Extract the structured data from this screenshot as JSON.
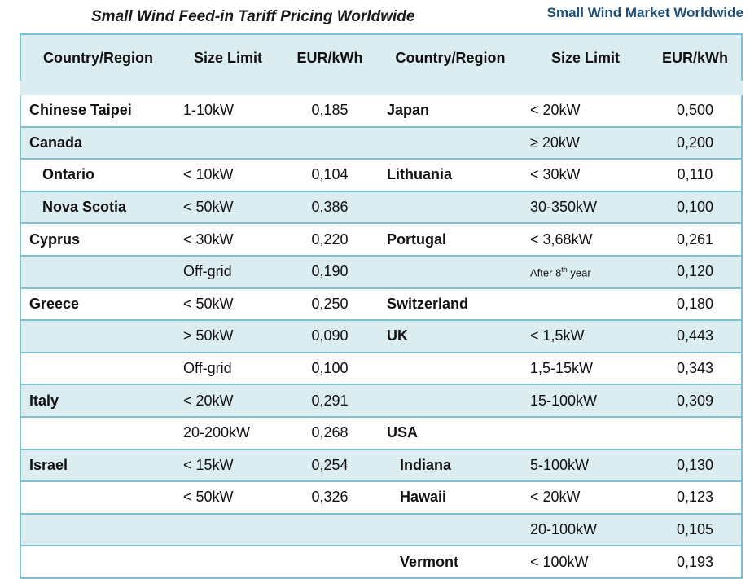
{
  "header": {
    "title": "Small Wind Feed-in Tariff Pricing Worldwide",
    "right_title": "Small Wind Market Worldwide"
  },
  "table": {
    "columns": [
      "Country/Region",
      "Size Limit",
      "EUR/kWh",
      "Country/Region",
      "Size Limit",
      "EUR/kWh"
    ],
    "rows": [
      {
        "l_country": "Chinese Taipei",
        "l_size": "1-10kW",
        "l_eur": "0,185",
        "r_country": "Japan",
        "r_size": "< 20kW",
        "r_eur": "0,500"
      },
      {
        "l_country": "Canada",
        "l_size": "",
        "l_eur": "",
        "r_country": "",
        "r_size": "≥ 20kW",
        "r_eur": "0,200"
      },
      {
        "l_country": "Ontario",
        "l_size": "< 10kW",
        "l_eur": "0,104",
        "r_country": "Lithuania",
        "r_size": "< 30kW",
        "r_eur": "0,110"
      },
      {
        "l_country": "Nova Scotia",
        "l_size": "< 50kW",
        "l_eur": "0,386",
        "r_country": "",
        "r_size": "30-350kW",
        "r_eur": "0,100"
      },
      {
        "l_country": "Cyprus",
        "l_size": "< 30kW",
        "l_eur": "0,220",
        "r_country": "Portugal",
        "r_size": "< 3,68kW",
        "r_eur": "0,261"
      },
      {
        "l_country": "",
        "l_size": "Off-grid",
        "l_eur": "0,190",
        "r_country": "",
        "r_size_prefix": "After 8",
        "r_size_sup": "th",
        "r_size_suffix": " year",
        "r_eur": "0,120"
      },
      {
        "l_country": "Greece",
        "l_size": "< 50kW",
        "l_eur": "0,250",
        "r_country": "Switzerland",
        "r_size": "",
        "r_eur": "0,180"
      },
      {
        "l_country": "",
        "l_size": "> 50kW",
        "l_eur": "0,090",
        "r_country": "UK",
        "r_size": "< 1,5kW",
        "r_eur": "0,443"
      },
      {
        "l_country": "",
        "l_size": "Off-grid",
        "l_eur": "0,100",
        "r_country": "",
        "r_size": "1,5-15kW",
        "r_eur": "0,343"
      },
      {
        "l_country": "Italy",
        "l_size": "< 20kW",
        "l_eur": "0,291",
        "r_country": "",
        "r_size": "15-100kW",
        "r_eur": "0,309"
      },
      {
        "l_country": "",
        "l_size": "20-200kW",
        "l_eur": "0,268",
        "r_country": "USA",
        "r_size": "",
        "r_eur": ""
      },
      {
        "l_country": "Israel",
        "l_size": "< 15kW",
        "l_eur": "0,254",
        "r_country": "Indiana",
        "r_size": "5-100kW",
        "r_eur": "0,130"
      },
      {
        "l_country": "",
        "l_size": "< 50kW",
        "l_eur": "0,326",
        "r_country": "Hawaii",
        "r_size": "< 20kW",
        "r_eur": "0,123"
      },
      {
        "l_country": "",
        "l_size": "",
        "l_eur": "",
        "r_country": "",
        "r_size": "20-100kW",
        "r_eur": "0,105"
      },
      {
        "l_country": "",
        "l_size": "",
        "l_eur": "",
        "r_country": "Vermont",
        "r_size": "< 100kW",
        "r_eur": "0,193"
      }
    ]
  },
  "colors": {
    "accent": "#7fc0d0",
    "shade": "#dcedf2",
    "right_title": "#1f4e79"
  }
}
